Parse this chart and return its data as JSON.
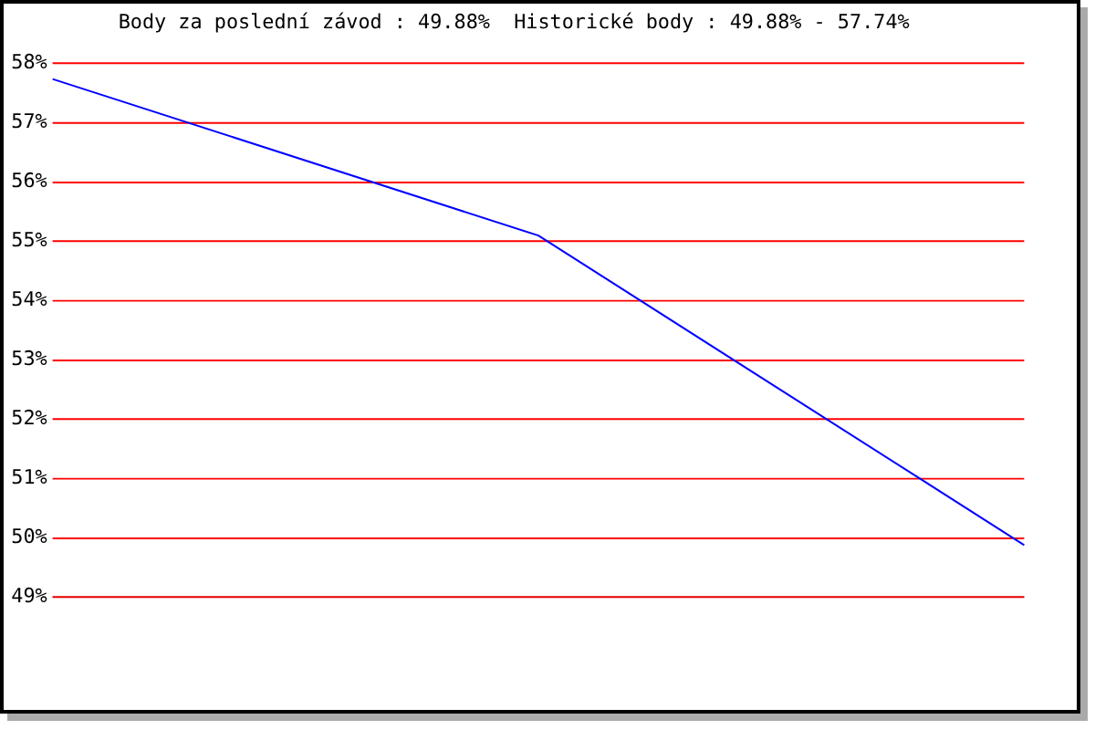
{
  "chart_data": {
    "type": "line",
    "title": "Body za poslední závod : 49.88%  Historické body : 49.88% - 57.74%",
    "categories": [
      null,
      null,
      null
    ],
    "series": [
      {
        "color": "#0000ff",
        "values": [
          57.74,
          55.1,
          49.88
        ]
      }
    ],
    "ylim": [
      49,
      58
    ],
    "yticks": [
      {
        "value": 49,
        "label": "49%"
      },
      {
        "value": 50,
        "label": "50%"
      },
      {
        "value": 51,
        "label": "51%"
      },
      {
        "value": 52,
        "label": "52%"
      },
      {
        "value": 53,
        "label": "53%"
      },
      {
        "value": 54,
        "label": "54%"
      },
      {
        "value": 55,
        "label": "55%"
      },
      {
        "value": 56,
        "label": "56%"
      },
      {
        "value": 57,
        "label": "57%"
      },
      {
        "value": 58,
        "label": "58%"
      }
    ],
    "grid": "y",
    "legend": false,
    "marker": "none"
  }
}
